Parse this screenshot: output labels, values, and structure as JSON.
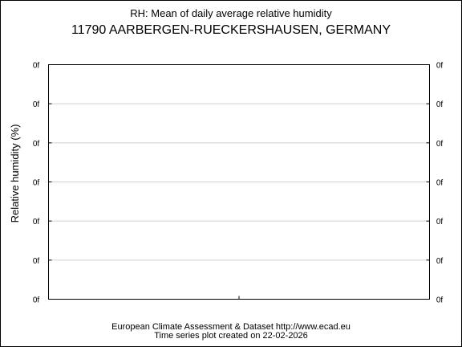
{
  "chart_data": {
    "type": "line",
    "title": "RH: Mean of daily average relative humidity",
    "subtitle": "11790 AARBERGEN-RUECKERSHAUSEN, GERMANY",
    "xlabel": "",
    "ylabel": "Relative humidity (%)",
    "y_tick_labels": [
      "0f",
      "0f",
      "0f",
      "0f",
      "0f",
      "0f",
      "0f"
    ],
    "x_tick_labels": [],
    "series": [],
    "grid": true,
    "legend": "none"
  },
  "footer": {
    "line1": "European Climate Assessment & Dataset  http://www.ecad.eu",
    "line2": "Time series plot created on 22-02-2026"
  },
  "colors": {
    "background": "#ffffff",
    "frame": "#000000",
    "grid": "#d0d0d0"
  }
}
